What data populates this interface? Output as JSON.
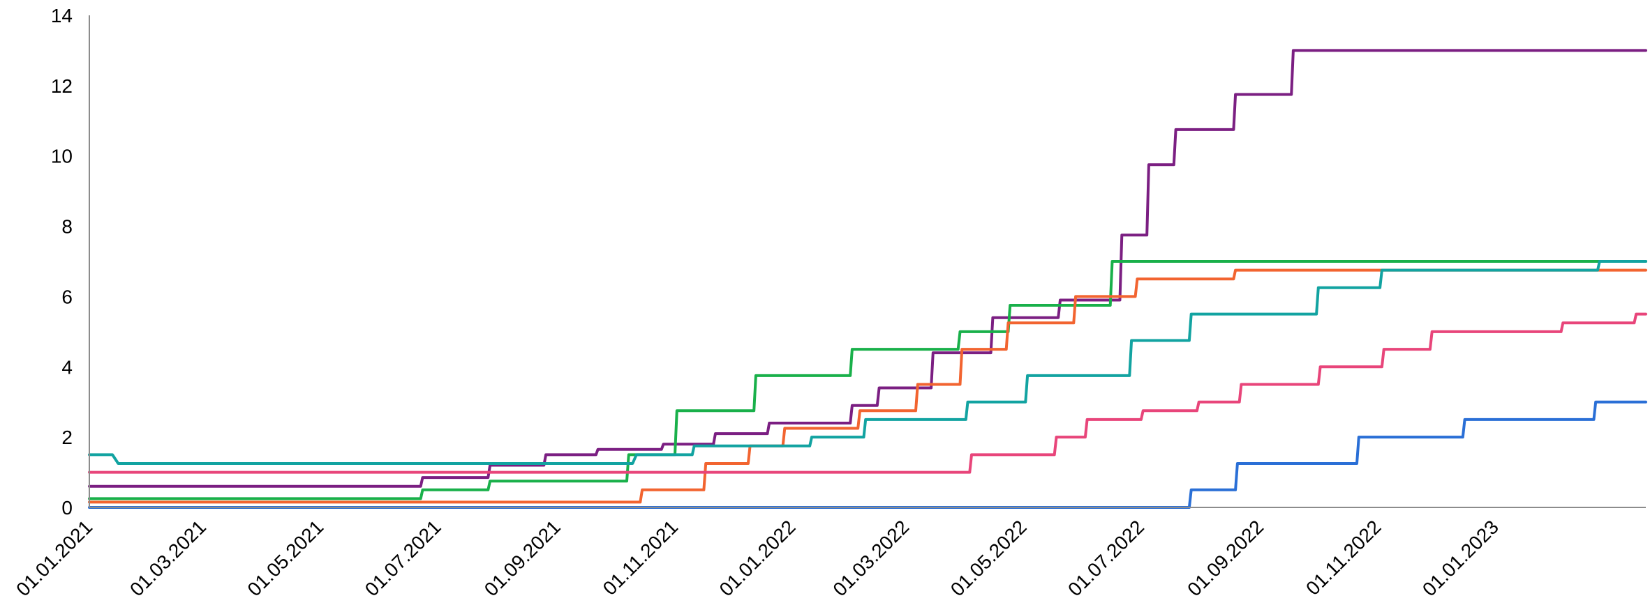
{
  "chart_data": {
    "type": "line",
    "title": "",
    "xlabel": "",
    "ylabel": "",
    "x_axis_type": "date",
    "xlim": [
      "2021-01-01",
      "2023-03-20"
    ],
    "ylim": [
      0,
      14
    ],
    "y_ticks": [
      0,
      2,
      4,
      6,
      8,
      10,
      12,
      14
    ],
    "x_ticks": [
      {
        "date": "2021-01-01",
        "label": "01.01.2021"
      },
      {
        "date": "2021-03-01",
        "label": "01.03.2021"
      },
      {
        "date": "2021-05-01",
        "label": "01.05.2021"
      },
      {
        "date": "2021-07-01",
        "label": "01.07.2021"
      },
      {
        "date": "2021-09-01",
        "label": "01.09.2021"
      },
      {
        "date": "2021-11-01",
        "label": "01.11.2021"
      },
      {
        "date": "2022-01-01",
        "label": "01.01.2022"
      },
      {
        "date": "2022-03-01",
        "label": "01.03.2022"
      },
      {
        "date": "2022-05-01",
        "label": "01.05.2022"
      },
      {
        "date": "2022-07-01",
        "label": "01.07.2022"
      },
      {
        "date": "2022-09-01",
        "label": "01.09.2022"
      },
      {
        "date": "2022-11-01",
        "label": "01.11.2022"
      },
      {
        "date": "2023-01-01",
        "label": "01.01.2023"
      }
    ],
    "grid": false,
    "legend": "none",
    "series": [
      {
        "color": "#7b1f82",
        "points": [
          [
            "2021-01-01",
            0.6
          ],
          [
            "2021-06-22",
            0.6
          ],
          [
            "2021-06-23",
            0.85
          ],
          [
            "2021-07-27",
            0.85
          ],
          [
            "2021-07-28",
            1.2
          ],
          [
            "2021-08-25",
            1.2
          ],
          [
            "2021-08-26",
            1.5
          ],
          [
            "2021-09-21",
            1.5
          ],
          [
            "2021-09-22",
            1.65
          ],
          [
            "2021-10-25",
            1.65
          ],
          [
            "2021-10-26",
            1.8
          ],
          [
            "2021-11-21",
            1.8
          ],
          [
            "2021-11-22",
            2.1
          ],
          [
            "2021-12-19",
            2.1
          ],
          [
            "2021-12-20",
            2.4
          ],
          [
            "2022-01-31",
            2.4
          ],
          [
            "2022-02-01",
            2.9
          ],
          [
            "2022-02-14",
            2.9
          ],
          [
            "2022-02-15",
            3.4
          ],
          [
            "2022-03-14",
            3.4
          ],
          [
            "2022-03-15",
            4.4
          ],
          [
            "2022-04-14",
            4.4
          ],
          [
            "2022-04-15",
            5.4
          ],
          [
            "2022-05-19",
            5.4
          ],
          [
            "2022-05-20",
            5.9
          ],
          [
            "2022-06-20",
            5.9
          ],
          [
            "2022-06-21",
            7.75
          ],
          [
            "2022-07-04",
            7.75
          ],
          [
            "2022-07-05",
            9.75
          ],
          [
            "2022-07-18",
            9.75
          ],
          [
            "2022-07-19",
            10.75
          ],
          [
            "2022-08-18",
            10.75
          ],
          [
            "2022-08-19",
            11.75
          ],
          [
            "2022-09-17",
            11.75
          ],
          [
            "2022-09-18",
            13.0
          ],
          [
            "2023-03-20",
            13.0
          ]
        ]
      },
      {
        "color": "#19b04a",
        "points": [
          [
            "2021-01-01",
            0.25
          ],
          [
            "2021-06-22",
            0.25
          ],
          [
            "2021-06-23",
            0.5
          ],
          [
            "2021-07-27",
            0.5
          ],
          [
            "2021-07-28",
            0.75
          ],
          [
            "2021-10-07",
            0.75
          ],
          [
            "2021-10-08",
            1.5
          ],
          [
            "2021-11-01",
            1.5
          ],
          [
            "2021-11-02",
            2.75
          ],
          [
            "2021-12-12",
            2.75
          ],
          [
            "2021-12-13",
            3.75
          ],
          [
            "2022-01-31",
            3.75
          ],
          [
            "2022-02-01",
            4.5
          ],
          [
            "2022-03-28",
            4.5
          ],
          [
            "2022-03-29",
            5.0
          ],
          [
            "2022-04-23",
            5.0
          ],
          [
            "2022-04-24",
            5.75
          ],
          [
            "2022-06-15",
            5.75
          ],
          [
            "2022-06-16",
            7.0
          ],
          [
            "2023-03-20",
            7.0
          ]
        ]
      },
      {
        "color": "#f26430",
        "points": [
          [
            "2021-01-01",
            0.15
          ],
          [
            "2021-10-14",
            0.15
          ],
          [
            "2021-10-15",
            0.5
          ],
          [
            "2021-11-16",
            0.5
          ],
          [
            "2021-11-17",
            1.25
          ],
          [
            "2021-12-09",
            1.25
          ],
          [
            "2021-12-10",
            1.75
          ],
          [
            "2021-12-27",
            1.75
          ],
          [
            "2021-12-28",
            2.25
          ],
          [
            "2022-02-04",
            2.25
          ],
          [
            "2022-02-05",
            2.75
          ],
          [
            "2022-03-06",
            2.75
          ],
          [
            "2022-03-07",
            3.5
          ],
          [
            "2022-03-29",
            3.5
          ],
          [
            "2022-03-30",
            4.5
          ],
          [
            "2022-04-22",
            4.5
          ],
          [
            "2022-04-23",
            5.25
          ],
          [
            "2022-05-27",
            5.25
          ],
          [
            "2022-05-28",
            6.0
          ],
          [
            "2022-06-28",
            6.0
          ],
          [
            "2022-06-29",
            6.5
          ],
          [
            "2022-08-18",
            6.5
          ],
          [
            "2022-08-19",
            6.75
          ],
          [
            "2023-03-20",
            6.75
          ]
        ]
      },
      {
        "color": "#12a3a1",
        "points": [
          [
            "2021-01-01",
            1.5
          ],
          [
            "2021-01-13",
            1.5
          ],
          [
            "2021-01-16",
            1.25
          ],
          [
            "2021-10-10",
            1.25
          ],
          [
            "2021-10-12",
            1.5
          ],
          [
            "2021-11-10",
            1.5
          ],
          [
            "2021-11-11",
            1.75
          ],
          [
            "2022-01-10",
            1.75
          ],
          [
            "2022-01-11",
            2.0
          ],
          [
            "2022-02-07",
            2.0
          ],
          [
            "2022-02-08",
            2.5
          ],
          [
            "2022-04-01",
            2.5
          ],
          [
            "2022-04-02",
            3.0
          ],
          [
            "2022-05-02",
            3.0
          ],
          [
            "2022-05-03",
            3.75
          ],
          [
            "2022-06-25",
            3.75
          ],
          [
            "2022-06-26",
            4.75
          ],
          [
            "2022-07-26",
            4.75
          ],
          [
            "2022-07-27",
            5.5
          ],
          [
            "2022-09-30",
            5.5
          ],
          [
            "2022-10-01",
            6.25
          ],
          [
            "2022-11-02",
            6.25
          ],
          [
            "2022-11-03",
            6.75
          ],
          [
            "2023-02-23",
            6.75
          ],
          [
            "2023-02-24",
            7.0
          ],
          [
            "2023-03-20",
            7.0
          ]
        ]
      },
      {
        "color": "#e8457a",
        "points": [
          [
            "2021-01-01",
            1.0
          ],
          [
            "2022-04-03",
            1.0
          ],
          [
            "2022-04-04",
            1.5
          ],
          [
            "2022-05-17",
            1.5
          ],
          [
            "2022-05-18",
            2.0
          ],
          [
            "2022-06-02",
            2.0
          ],
          [
            "2022-06-03",
            2.5
          ],
          [
            "2022-07-01",
            2.5
          ],
          [
            "2022-07-02",
            2.75
          ],
          [
            "2022-07-30",
            2.75
          ],
          [
            "2022-07-31",
            3.0
          ],
          [
            "2022-08-21",
            3.0
          ],
          [
            "2022-08-22",
            3.5
          ],
          [
            "2022-10-01",
            3.5
          ],
          [
            "2022-10-02",
            4.0
          ],
          [
            "2022-11-03",
            4.0
          ],
          [
            "2022-11-04",
            4.5
          ],
          [
            "2022-11-28",
            4.5
          ],
          [
            "2022-11-29",
            5.0
          ],
          [
            "2023-02-04",
            5.0
          ],
          [
            "2023-02-05",
            5.25
          ],
          [
            "2023-03-14",
            5.25
          ],
          [
            "2023-03-15",
            5.5
          ],
          [
            "2023-03-20",
            5.5
          ]
        ]
      },
      {
        "color": "#2a6fd6",
        "points": [
          [
            "2021-01-01",
            0.0
          ],
          [
            "2022-07-26",
            0.0
          ],
          [
            "2022-07-27",
            0.5
          ],
          [
            "2022-08-19",
            0.5
          ],
          [
            "2022-08-20",
            1.25
          ],
          [
            "2022-10-21",
            1.25
          ],
          [
            "2022-10-22",
            2.0
          ],
          [
            "2022-12-15",
            2.0
          ],
          [
            "2022-12-16",
            2.5
          ],
          [
            "2023-02-21",
            2.5
          ],
          [
            "2023-02-22",
            3.0
          ],
          [
            "2023-03-20",
            3.0
          ]
        ]
      }
    ]
  }
}
